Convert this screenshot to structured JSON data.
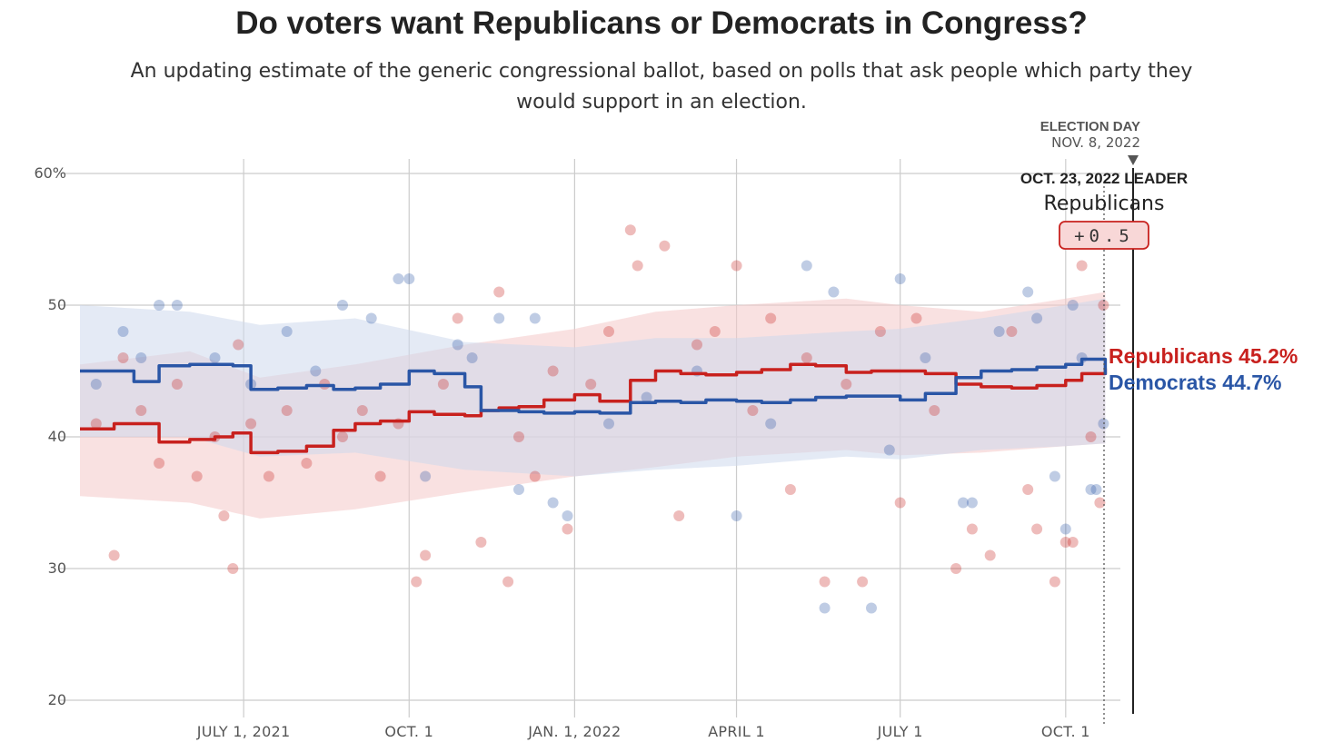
{
  "header": {
    "title": "Do voters want Republicans or Democrats in Congress?",
    "subtitle": "An updating estimate of the generic congressional ballot, based on polls that ask people which party they would support in an election."
  },
  "annotations": {
    "election_day_title": "ELECTION DAY",
    "election_day_date": "NOV. 8, 2022",
    "leader_title": "OCT. 23, 2022 LEADER",
    "leader_party": "Republicans",
    "leader_margin": "+0.5"
  },
  "colors": {
    "republican": "#c8211e",
    "democrat": "#2a56a6",
    "republican_band": "#f4c9c9",
    "democrat_band": "#cdd8ec",
    "grid": "#cccccc"
  },
  "chart_data": {
    "type": "line",
    "title": "Do voters want Republicans or Democrats in Congress?",
    "xlabel": "",
    "ylabel": "",
    "x_range": [
      "2021-04-01",
      "2022-11-10"
    ],
    "ylim": [
      20,
      60
    ],
    "y_ticks": [
      20,
      30,
      40,
      50,
      60
    ],
    "y_tick_labels": [
      "20",
      "30",
      "40",
      "50",
      "60%"
    ],
    "x_ticks": [
      "2021-07-01",
      "2021-10-01",
      "2022-01-01",
      "2022-04-01",
      "2022-07-01",
      "2022-10-01"
    ],
    "x_tick_labels": [
      "JULY 1, 2021",
      "OCT. 1",
      "JAN. 1, 2022",
      "APRIL 1",
      "JULY 1",
      "OCT. 1"
    ],
    "grid": true,
    "legend": "end labels at right",
    "last_update": "2022-10-23",
    "election_day": "2022-11-08",
    "series": [
      {
        "name": "Republicans",
        "color_key": "republican",
        "end_label": "Republicans 45.2%",
        "x": [
          "2021-04-01",
          "2021-04-20",
          "2021-05-01",
          "2021-05-15",
          "2021-06-01",
          "2021-06-15",
          "2021-06-25",
          "2021-07-05",
          "2021-07-20",
          "2021-08-05",
          "2021-08-20",
          "2021-09-01",
          "2021-09-15",
          "2021-10-01",
          "2021-10-15",
          "2021-11-01",
          "2021-11-10",
          "2021-11-20",
          "2021-12-01",
          "2021-12-15",
          "2022-01-01",
          "2022-01-15",
          "2022-02-01",
          "2022-02-15",
          "2022-03-01",
          "2022-03-15",
          "2022-04-01",
          "2022-04-15",
          "2022-05-01",
          "2022-05-15",
          "2022-06-01",
          "2022-06-15",
          "2022-07-01",
          "2022-07-15",
          "2022-08-01",
          "2022-08-15",
          "2022-09-01",
          "2022-09-15",
          "2022-10-01",
          "2022-10-10",
          "2022-10-23"
        ],
        "y": [
          40.6,
          41.0,
          41.0,
          39.6,
          39.8,
          40.0,
          40.3,
          38.8,
          38.9,
          39.3,
          40.5,
          41.0,
          41.2,
          41.9,
          41.7,
          41.6,
          42.0,
          42.2,
          42.3,
          42.8,
          43.2,
          42.7,
          44.3,
          45.0,
          44.8,
          44.7,
          44.9,
          45.1,
          45.5,
          45.4,
          44.9,
          45.0,
          45.0,
          44.8,
          44.0,
          43.8,
          43.7,
          43.9,
          44.3,
          44.8,
          45.2
        ]
      },
      {
        "name": "Democrats",
        "color_key": "democrat",
        "end_label": "Democrats 44.7%",
        "x": [
          "2021-04-01",
          "2021-04-20",
          "2021-05-01",
          "2021-05-15",
          "2021-06-01",
          "2021-06-15",
          "2021-06-25",
          "2021-07-05",
          "2021-07-20",
          "2021-08-05",
          "2021-08-20",
          "2021-09-01",
          "2021-09-15",
          "2021-10-01",
          "2021-10-15",
          "2021-11-01",
          "2021-11-10",
          "2021-11-20",
          "2021-12-01",
          "2021-12-15",
          "2022-01-01",
          "2022-01-15",
          "2022-02-01",
          "2022-02-15",
          "2022-03-01",
          "2022-03-15",
          "2022-04-01",
          "2022-04-15",
          "2022-05-01",
          "2022-05-15",
          "2022-06-01",
          "2022-06-15",
          "2022-07-01",
          "2022-07-15",
          "2022-08-01",
          "2022-08-15",
          "2022-09-01",
          "2022-09-15",
          "2022-10-01",
          "2022-10-10",
          "2022-10-23"
        ],
        "y": [
          45.0,
          45.0,
          44.2,
          45.4,
          45.5,
          45.5,
          45.4,
          43.6,
          43.7,
          43.9,
          43.6,
          43.7,
          44.0,
          45.0,
          44.8,
          43.8,
          42.0,
          42.0,
          41.9,
          41.8,
          41.9,
          41.8,
          42.6,
          42.7,
          42.6,
          42.8,
          42.7,
          42.6,
          42.8,
          43.0,
          43.1,
          43.1,
          42.8,
          43.3,
          44.5,
          45.0,
          45.1,
          45.3,
          45.5,
          45.9,
          44.7
        ]
      }
    ],
    "bands": [
      {
        "series": "Republicans",
        "x": [
          "2021-04-01",
          "2021-06-01",
          "2021-07-10",
          "2021-09-01",
          "2021-11-01",
          "2022-01-01",
          "2022-02-15",
          "2022-04-01",
          "2022-06-01",
          "2022-07-01",
          "2022-08-15",
          "2022-10-01",
          "2022-10-23"
        ],
        "low": [
          35.5,
          35.0,
          33.8,
          34.5,
          35.8,
          37.0,
          37.7,
          38.5,
          39.0,
          38.6,
          38.8,
          39.3,
          39.5
        ],
        "high": [
          45.5,
          46.5,
          44.5,
          45.5,
          47.0,
          48.2,
          49.5,
          50.0,
          50.5,
          50.0,
          49.5,
          50.5,
          51.0
        ]
      },
      {
        "series": "Democrats",
        "x": [
          "2021-04-01",
          "2021-06-01",
          "2021-07-10",
          "2021-09-01",
          "2021-11-01",
          "2022-01-01",
          "2022-02-15",
          "2022-04-01",
          "2022-06-01",
          "2022-07-01",
          "2022-08-15",
          "2022-10-01",
          "2022-10-23"
        ],
        "low": [
          40.0,
          40.0,
          38.5,
          38.8,
          37.5,
          37.0,
          37.5,
          37.8,
          38.5,
          38.3,
          39.0,
          39.3,
          39.5
        ],
        "high": [
          50.0,
          49.5,
          48.5,
          49.0,
          47.2,
          46.8,
          47.5,
          47.5,
          48.0,
          48.2,
          49.0,
          50.0,
          50.5
        ]
      }
    ],
    "polls": {
      "republican": [
        [
          "2021-04-10",
          41
        ],
        [
          "2021-04-20",
          31
        ],
        [
          "2021-04-25",
          46
        ],
        [
          "2021-05-05",
          42
        ],
        [
          "2021-05-15",
          38
        ],
        [
          "2021-05-25",
          44
        ],
        [
          "2021-06-05",
          37
        ],
        [
          "2021-06-15",
          40
        ],
        [
          "2021-06-20",
          34
        ],
        [
          "2021-06-25",
          30
        ],
        [
          "2021-06-28",
          47
        ],
        [
          "2021-07-05",
          41
        ],
        [
          "2021-07-15",
          37
        ],
        [
          "2021-07-25",
          42
        ],
        [
          "2021-08-05",
          38
        ],
        [
          "2021-08-15",
          44
        ],
        [
          "2021-08-25",
          40
        ],
        [
          "2021-09-05",
          42
        ],
        [
          "2021-09-15",
          37
        ],
        [
          "2021-09-25",
          41
        ],
        [
          "2021-10-05",
          29
        ],
        [
          "2021-10-10",
          31
        ],
        [
          "2021-10-20",
          44
        ],
        [
          "2021-10-28",
          49
        ],
        [
          "2021-11-10",
          32
        ],
        [
          "2021-11-20",
          51
        ],
        [
          "2021-11-25",
          29
        ],
        [
          "2021-12-01",
          40
        ],
        [
          "2021-12-10",
          37
        ],
        [
          "2021-12-20",
          45
        ],
        [
          "2021-12-28",
          33
        ],
        [
          "2022-01-10",
          44
        ],
        [
          "2022-01-20",
          48
        ],
        [
          "2022-02-01",
          55.7
        ],
        [
          "2022-02-05",
          53
        ],
        [
          "2022-02-20",
          54.5
        ],
        [
          "2022-02-28",
          34
        ],
        [
          "2022-03-10",
          47
        ],
        [
          "2022-03-20",
          48
        ],
        [
          "2022-04-01",
          53
        ],
        [
          "2022-04-10",
          42
        ],
        [
          "2022-04-20",
          49
        ],
        [
          "2022-05-01",
          36
        ],
        [
          "2022-05-10",
          46
        ],
        [
          "2022-05-20",
          29
        ],
        [
          "2022-06-01",
          44
        ],
        [
          "2022-06-10",
          29
        ],
        [
          "2022-06-20",
          48
        ],
        [
          "2022-07-01",
          35
        ],
        [
          "2022-07-10",
          49
        ],
        [
          "2022-07-20",
          42
        ],
        [
          "2022-08-01",
          30
        ],
        [
          "2022-08-10",
          33
        ],
        [
          "2022-08-20",
          31
        ],
        [
          "2022-09-01",
          48
        ],
        [
          "2022-09-10",
          36
        ],
        [
          "2022-09-15",
          33
        ],
        [
          "2022-09-25",
          29
        ],
        [
          "2022-10-01",
          32
        ],
        [
          "2022-10-05",
          32
        ],
        [
          "2022-10-10",
          53
        ],
        [
          "2022-10-15",
          40
        ],
        [
          "2022-10-20",
          35
        ],
        [
          "2022-10-22",
          50
        ]
      ],
      "democrat": [
        [
          "2021-04-10",
          44
        ],
        [
          "2021-04-25",
          48
        ],
        [
          "2021-05-05",
          46
        ],
        [
          "2021-05-15",
          50
        ],
        [
          "2021-05-25",
          50
        ],
        [
          "2021-06-15",
          46
        ],
        [
          "2021-07-05",
          44
        ],
        [
          "2021-07-25",
          48
        ],
        [
          "2021-08-10",
          45
        ],
        [
          "2021-08-25",
          50
        ],
        [
          "2021-09-10",
          49
        ],
        [
          "2021-09-25",
          52
        ],
        [
          "2021-10-01",
          52
        ],
        [
          "2021-10-10",
          37
        ],
        [
          "2021-10-28",
          47
        ],
        [
          "2021-11-05",
          46
        ],
        [
          "2021-11-20",
          49
        ],
        [
          "2021-12-01",
          36
        ],
        [
          "2021-12-10",
          49
        ],
        [
          "2021-12-20",
          35
        ],
        [
          "2021-12-28",
          34
        ],
        [
          "2022-01-20",
          41
        ],
        [
          "2022-02-10",
          43
        ],
        [
          "2022-03-10",
          45
        ],
        [
          "2022-04-01",
          34
        ],
        [
          "2022-04-20",
          41
        ],
        [
          "2022-05-10",
          53
        ],
        [
          "2022-05-20",
          27
        ],
        [
          "2022-05-25",
          51
        ],
        [
          "2022-06-15",
          27
        ],
        [
          "2022-06-25",
          39
        ],
        [
          "2022-07-01",
          52
        ],
        [
          "2022-07-15",
          46
        ],
        [
          "2022-08-05",
          35
        ],
        [
          "2022-08-10",
          35
        ],
        [
          "2022-08-25",
          48
        ],
        [
          "2022-09-10",
          51
        ],
        [
          "2022-09-15",
          49
        ],
        [
          "2022-09-25",
          37
        ],
        [
          "2022-10-01",
          33
        ],
        [
          "2022-10-05",
          50
        ],
        [
          "2022-10-10",
          46
        ],
        [
          "2022-10-15",
          36
        ],
        [
          "2022-10-18",
          36
        ],
        [
          "2022-10-22",
          41
        ]
      ]
    }
  }
}
